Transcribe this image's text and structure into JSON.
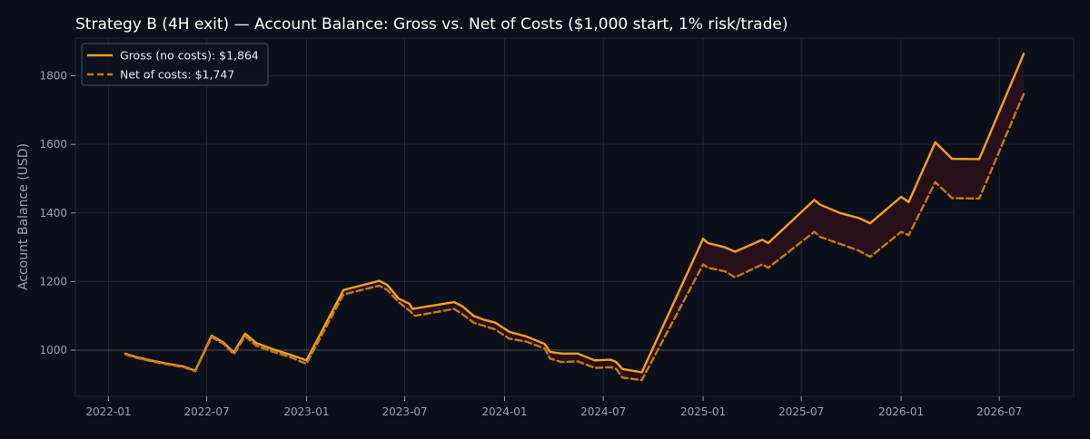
{
  "colors": {
    "background": "#0b0f19",
    "plot_background": "#0b0f19",
    "gross_line": "#f5a11c",
    "net_line": "#c87a16",
    "fill_between": "#2a0f1a",
    "grid": "#1f2533",
    "axis_text": "#9aa3b2",
    "title_text": "#ffffff",
    "baseline": "#3a4252"
  },
  "chart_data": {
    "type": "line",
    "title": "Strategy B (4H exit) — Account Balance: Gross vs. Net of Costs ($1,000 start, 1% risk/trade)",
    "xlabel": "",
    "ylabel": "Account Balance (USD)",
    "xlim": [
      "2021-11-01",
      "2026-11-15"
    ],
    "ylim": [
      865,
      1910
    ],
    "x_ticks": [
      "2022-01",
      "2022-07",
      "2023-01",
      "2023-07",
      "2024-01",
      "2024-07",
      "2025-01",
      "2025-07",
      "2026-01",
      "2026-07"
    ],
    "y_ticks": [
      1000,
      1200,
      1400,
      1600,
      1800
    ],
    "grid": true,
    "legend_position": "top-left",
    "reference_line": 1000,
    "shade_between_series": true,
    "series": [
      {
        "name": "Gross (no costs): $1,864",
        "style": "solid",
        "points": [
          [
            "2022-02-01",
            990
          ],
          [
            "2022-02-20",
            980
          ],
          [
            "2022-03-20",
            970
          ],
          [
            "2022-04-20",
            960
          ],
          [
            "2022-05-20",
            952
          ],
          [
            "2022-06-10",
            940
          ],
          [
            "2022-07-10",
            1042
          ],
          [
            "2022-08-01",
            1022
          ],
          [
            "2022-08-20",
            993
          ],
          [
            "2022-09-10",
            1048
          ],
          [
            "2022-10-01",
            1020
          ],
          [
            "2022-11-01",
            1002
          ],
          [
            "2022-12-01",
            987
          ],
          [
            "2023-01-01",
            970
          ],
          [
            "2023-03-10",
            1175
          ],
          [
            "2023-05-15",
            1202
          ],
          [
            "2023-05-30",
            1190
          ],
          [
            "2023-06-20",
            1150
          ],
          [
            "2023-07-10",
            1135
          ],
          [
            "2023-07-15",
            1120
          ],
          [
            "2023-09-30",
            1140
          ],
          [
            "2023-10-15",
            1128
          ],
          [
            "2023-11-05",
            1100
          ],
          [
            "2023-11-25",
            1088
          ],
          [
            "2023-12-15",
            1080
          ],
          [
            "2024-01-10",
            1053
          ],
          [
            "2024-02-10",
            1040
          ],
          [
            "2024-03-15",
            1018
          ],
          [
            "2024-03-25",
            995
          ],
          [
            "2024-04-15",
            990
          ],
          [
            "2024-05-15",
            990
          ],
          [
            "2024-06-15",
            970
          ],
          [
            "2024-07-15",
            972
          ],
          [
            "2024-07-25",
            965
          ],
          [
            "2024-08-05",
            945
          ],
          [
            "2024-09-10",
            935
          ],
          [
            "2025-01-01",
            1325
          ],
          [
            "2025-01-10",
            1312
          ],
          [
            "2025-02-10",
            1300
          ],
          [
            "2025-03-01",
            1287
          ],
          [
            "2025-04-20",
            1322
          ],
          [
            "2025-05-01",
            1312
          ],
          [
            "2025-07-25",
            1438
          ],
          [
            "2025-08-05",
            1424
          ],
          [
            "2025-09-10",
            1400
          ],
          [
            "2025-10-15",
            1385
          ],
          [
            "2025-11-05",
            1370
          ],
          [
            "2026-01-01",
            1447
          ],
          [
            "2026-01-15",
            1432
          ],
          [
            "2026-03-05",
            1606
          ],
          [
            "2026-04-05",
            1558
          ],
          [
            "2026-05-25",
            1557
          ],
          [
            "2026-08-15",
            1864
          ]
        ]
      },
      {
        "name": "Net of costs: $1,747",
        "style": "dashed",
        "points": [
          [
            "2022-02-01",
            988
          ],
          [
            "2022-02-20",
            978
          ],
          [
            "2022-03-20",
            968
          ],
          [
            "2022-04-20",
            958
          ],
          [
            "2022-05-20",
            950
          ],
          [
            "2022-06-10",
            938
          ],
          [
            "2022-07-10",
            1038
          ],
          [
            "2022-08-01",
            1018
          ],
          [
            "2022-08-20",
            988
          ],
          [
            "2022-09-10",
            1040
          ],
          [
            "2022-10-01",
            1012
          ],
          [
            "2022-11-01",
            995
          ],
          [
            "2022-12-01",
            980
          ],
          [
            "2023-01-01",
            960
          ],
          [
            "2023-03-10",
            1162
          ],
          [
            "2023-05-15",
            1188
          ],
          [
            "2023-05-30",
            1175
          ],
          [
            "2023-06-20",
            1140
          ],
          [
            "2023-07-10",
            1115
          ],
          [
            "2023-07-20",
            1100
          ],
          [
            "2023-09-30",
            1120
          ],
          [
            "2023-10-15",
            1105
          ],
          [
            "2023-11-05",
            1080
          ],
          [
            "2023-11-25",
            1070
          ],
          [
            "2023-12-15",
            1060
          ],
          [
            "2024-01-10",
            1033
          ],
          [
            "2024-02-10",
            1025
          ],
          [
            "2024-03-15",
            1005
          ],
          [
            "2024-03-25",
            975
          ],
          [
            "2024-04-15",
            965
          ],
          [
            "2024-05-15",
            967
          ],
          [
            "2024-06-15",
            948
          ],
          [
            "2024-07-15",
            950
          ],
          [
            "2024-07-25",
            945
          ],
          [
            "2024-08-05",
            920
          ],
          [
            "2024-09-10",
            912
          ],
          [
            "2025-01-01",
            1250
          ],
          [
            "2025-01-10",
            1240
          ],
          [
            "2025-02-10",
            1230
          ],
          [
            "2025-03-01",
            1212
          ],
          [
            "2025-04-20",
            1250
          ],
          [
            "2025-05-01",
            1240
          ],
          [
            "2025-07-25",
            1345
          ],
          [
            "2025-08-05",
            1330
          ],
          [
            "2025-09-10",
            1310
          ],
          [
            "2025-10-15",
            1290
          ],
          [
            "2025-11-05",
            1272
          ],
          [
            "2026-01-01",
            1345
          ],
          [
            "2026-01-15",
            1335
          ],
          [
            "2026-03-05",
            1490
          ],
          [
            "2026-04-05",
            1443
          ],
          [
            "2026-05-25",
            1442
          ],
          [
            "2026-08-15",
            1747
          ]
        ]
      }
    ]
  }
}
